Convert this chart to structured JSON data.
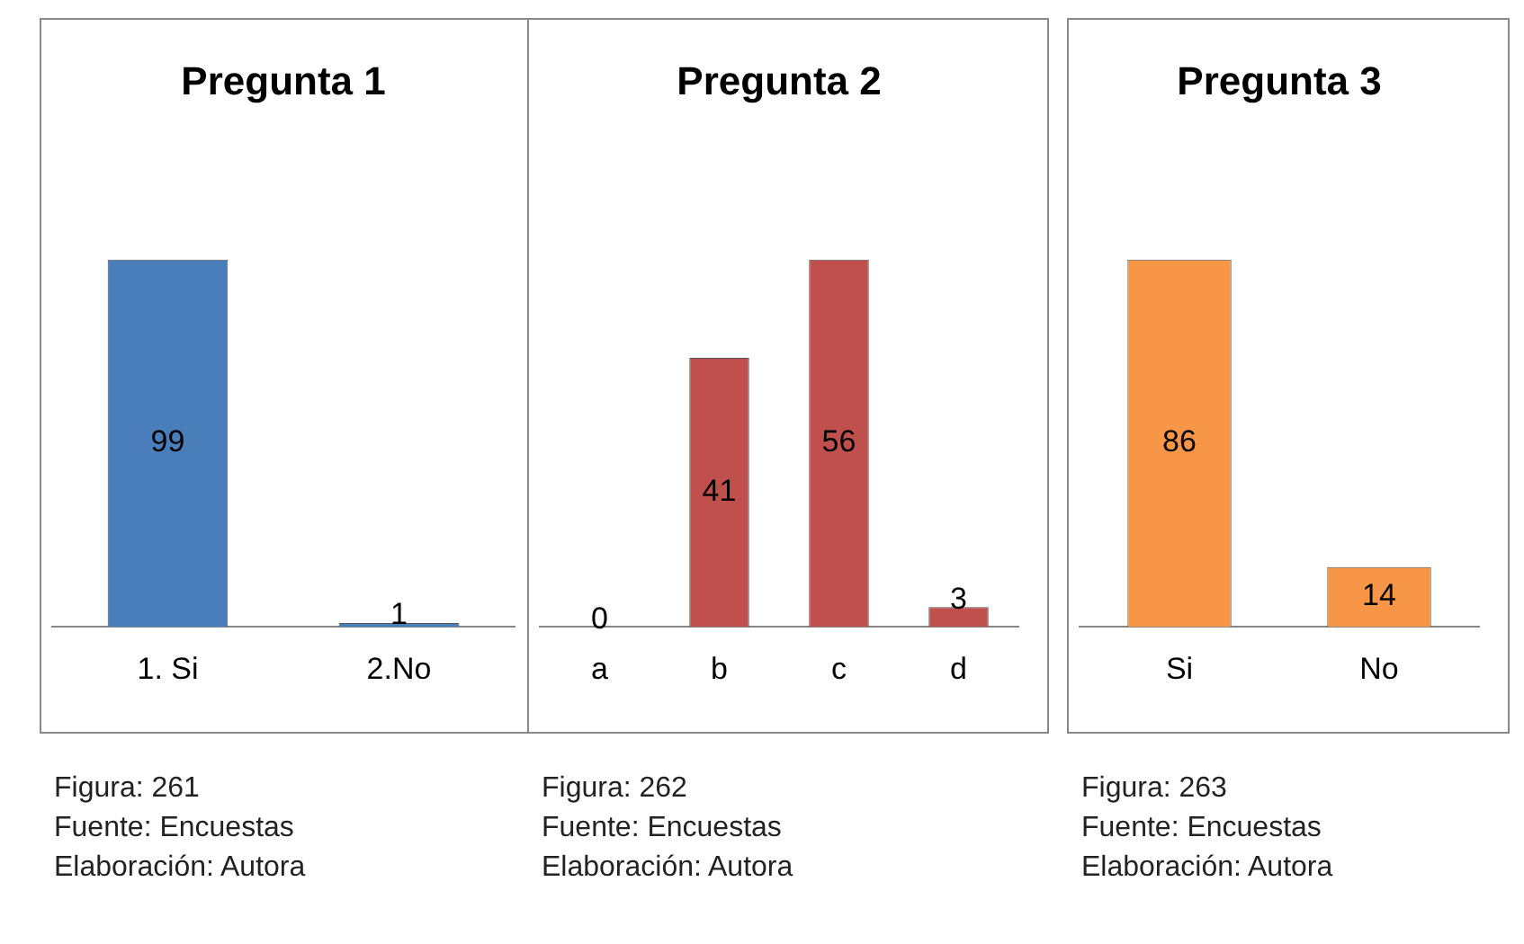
{
  "chart_data": [
    {
      "type": "bar",
      "title": "Pregunta 1",
      "categories": [
        "1. Si",
        "2.No"
      ],
      "values": [
        99,
        1
      ],
      "color": "#4a7ebb",
      "data_labels": true,
      "grid": false,
      "legend": false,
      "tick_labels": "x",
      "annotations": [
        "Figura: 261",
        "Fuente: Encuestas",
        "Elaboración: Autora"
      ]
    },
    {
      "type": "bar",
      "title": "Pregunta 2",
      "categories": [
        "a",
        "b",
        "c",
        "d"
      ],
      "values": [
        0,
        41,
        56,
        3
      ],
      "color": "#c0504d",
      "data_labels": true,
      "grid": false,
      "legend": false,
      "tick_labels": "x",
      "annotations": [
        "Figura: 262",
        "Fuente: Encuestas",
        "Elaboración: Autora"
      ]
    },
    {
      "type": "bar",
      "title": "Pregunta 3",
      "categories": [
        "Si",
        "No"
      ],
      "values": [
        86,
        14
      ],
      "color": "#f79646",
      "data_labels": true,
      "grid": false,
      "legend": false,
      "tick_labels": "x",
      "annotations": [
        "Figura: 263",
        "Fuente: Encuestas",
        "Elaboración: Autora"
      ]
    }
  ]
}
